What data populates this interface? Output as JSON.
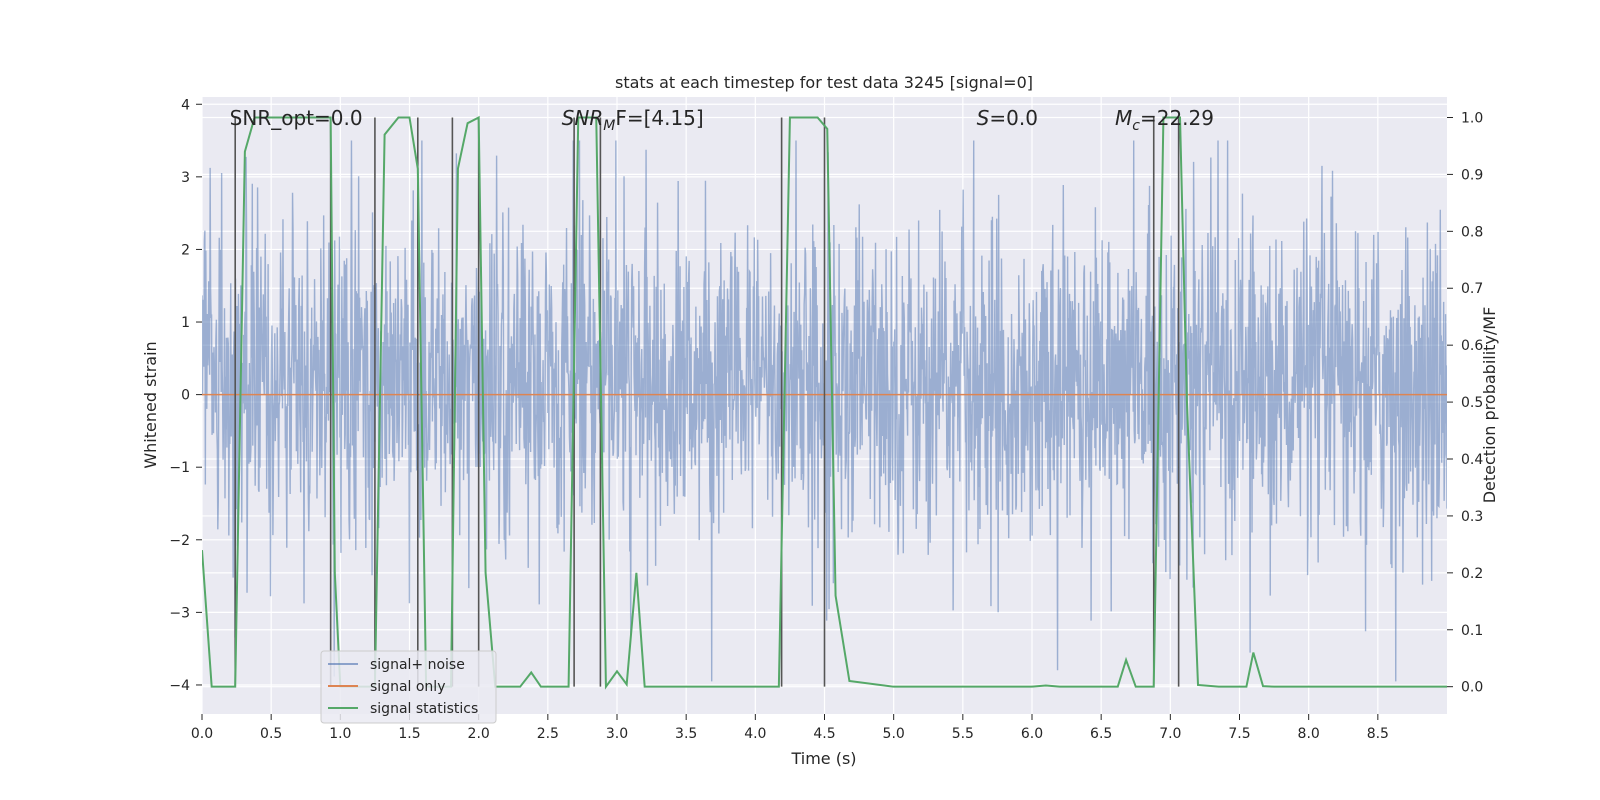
{
  "chart_data": {
    "type": "line",
    "title": "stats at each timestep for test data 3245 [signal=0]",
    "xlabel": "Time (s)",
    "ylabel_left": "Whitened strain",
    "ylabel_right": "Detection probability/MF",
    "xlim": [
      0.0,
      9.0
    ],
    "ylim_left": [
      -4.4,
      4.1
    ],
    "ylim_right": [
      -0.048,
      1.036
    ],
    "xticks": [
      "0.0",
      "0.5",
      "1.0",
      "1.5",
      "2.0",
      "2.5",
      "3.0",
      "3.5",
      "4.0",
      "4.5",
      "5.0",
      "5.5",
      "6.0",
      "6.5",
      "7.0",
      "7.5",
      "8.0",
      "8.5"
    ],
    "yticks_left": [
      "4",
      "3",
      "2",
      "1",
      "0",
      "−1",
      "−2",
      "−3",
      "−4"
    ],
    "yticks_left_values": [
      4,
      3,
      2,
      1,
      0,
      -1,
      -2,
      -3,
      -4
    ],
    "yticks_right": [
      "1.0",
      "0.9",
      "0.8",
      "0.7",
      "0.6",
      "0.5",
      "0.4",
      "0.3",
      "0.2",
      "0.1",
      "0.0"
    ],
    "yticks_right_values": [
      1.0,
      0.9,
      0.8,
      0.7,
      0.6,
      0.5,
      0.4,
      0.3,
      0.2,
      0.1,
      0.0
    ],
    "annotations": [
      {
        "label": "SNR_opt=0.0",
        "x": 0.2
      },
      {
        "label": "SNR",
        "sub": "M",
        "rest": "F=[4.15]",
        "x": 2.6
      },
      {
        "label": "S",
        "rest": "=0.0",
        "x": 5.6
      },
      {
        "label": "M",
        "sub": "c",
        "rest": "=22.29",
        "x": 6.6
      }
    ],
    "series": [
      {
        "name": "signal+ noise",
        "color": "#4c72b0",
        "note": "whitened strain noise, roughly within -4 to +3.5, mostly -1.7 to +2.2"
      },
      {
        "name": "signal only",
        "color": "#dd8452",
        "values_constant": 0.0
      },
      {
        "name": "signal statistics",
        "color": "#55a868",
        "x": [
          0.0,
          0.07,
          0.15,
          0.24,
          0.31,
          0.38,
          0.5,
          0.65,
          0.8,
          0.93,
          0.96,
          1.0,
          1.05,
          1.15,
          1.25,
          1.32,
          1.42,
          1.5,
          1.56,
          1.62,
          1.7,
          1.8,
          1.85,
          1.92,
          2.0,
          2.05,
          2.12,
          2.2,
          2.3,
          2.38,
          2.45,
          2.55,
          2.65,
          2.72,
          2.78,
          2.85,
          2.92,
          3.0,
          3.07,
          3.14,
          3.2,
          3.3,
          3.5,
          4.0,
          4.17,
          4.25,
          4.32,
          4.45,
          4.52,
          4.58,
          4.68,
          5.0,
          5.5,
          6.0,
          6.1,
          6.2,
          6.5,
          6.62,
          6.68,
          6.75,
          6.88,
          6.95,
          7.0,
          7.07,
          7.12,
          7.2,
          7.35,
          7.55,
          7.6,
          7.67,
          7.75,
          8.0,
          8.5,
          9.0
        ],
        "values": [
          0.24,
          0.0,
          0.0,
          0.0,
          0.94,
          1.0,
          1.0,
          1.0,
          1.0,
          1.0,
          0.2,
          0.0,
          0.0,
          0.0,
          0.0,
          0.97,
          1.0,
          1.0,
          0.91,
          0.0,
          0.0,
          0.0,
          0.91,
          0.99,
          1.0,
          0.2,
          0.0,
          0.0,
          0.0,
          0.025,
          0.0,
          0.0,
          0.0,
          1.0,
          1.0,
          1.0,
          0.0,
          0.027,
          0.004,
          0.2,
          0.0,
          0.0,
          0.0,
          0.0,
          0.0,
          1.0,
          1.0,
          1.0,
          0.98,
          0.16,
          0.01,
          0.0,
          0.0,
          0.0,
          0.002,
          0.0,
          0.0,
          0.0,
          0.047,
          0.0,
          0.0,
          1.0,
          1.0,
          1.0,
          0.5,
          0.003,
          0.0,
          0.0,
          0.06,
          0.001,
          0.0,
          0.0,
          0.0,
          0.0
        ]
      }
    ],
    "vertical_lines_s": [
      0.24,
      0.93,
      1.25,
      1.56,
      1.81,
      2.0,
      2.69,
      2.88,
      4.19,
      4.5,
      6.88,
      7.06
    ],
    "legend": {
      "placement": "lower-left",
      "entries": [
        "signal+ noise",
        "signal only",
        "signal statistics"
      ]
    },
    "grid": true
  }
}
